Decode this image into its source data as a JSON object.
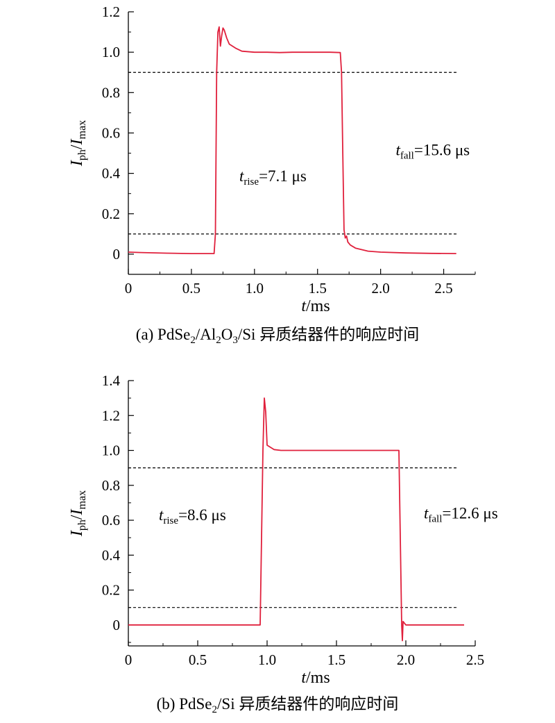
{
  "chart_data": [
    {
      "type": "line",
      "caption": {
        "prefix": "(a) PdSe",
        "sub1": "2",
        "mid1": "/Al",
        "sub2": "2",
        "mid2": "O",
        "sub3": "3",
        "suffix": "/Si 异质结器件的响应时间"
      },
      "xlabel": {
        "italic": "t",
        "rest": "/ms"
      },
      "ylabel": {
        "main1": "I",
        "sub1": "ph",
        "slash": "/",
        "main2": "I",
        "sub2": "max"
      },
      "xlim": [
        0,
        2.75
      ],
      "ylim": [
        -0.1,
        1.2
      ],
      "xticks": [
        0,
        0.5,
        1.0,
        1.5,
        2.0,
        2.5
      ],
      "xtick_labels": [
        "0",
        "0.5",
        "1.0",
        "1.5",
        "2.0",
        "2.5"
      ],
      "yticks": [
        0,
        0.2,
        0.4,
        0.6,
        0.8,
        1.0,
        1.2
      ],
      "ytick_labels": [
        "0",
        "0.2",
        "0.4",
        "0.6",
        "0.8",
        "1.0",
        "1.2"
      ],
      "reference_lines": [
        0.9,
        0.1
      ],
      "annotations": [
        {
          "main": "t",
          "sub": "rise",
          "text": "=7.1 μs",
          "x": 0.88,
          "y": 0.36
        },
        {
          "main": "t",
          "sub": "fall",
          "text": "=15.6 μs",
          "x": 2.12,
          "y": 0.49
        }
      ],
      "series": [
        {
          "color": "#e0203c",
          "x": [
            0,
            0.1,
            0.3,
            0.5,
            0.68,
            0.69,
            0.7,
            0.71,
            0.72,
            0.73,
            0.74,
            0.75,
            0.76,
            0.78,
            0.8,
            0.85,
            0.9,
            1.0,
            1.1,
            1.2,
            1.3,
            1.4,
            1.5,
            1.6,
            1.68,
            1.69,
            1.7,
            1.71,
            1.72,
            1.73,
            1.74,
            1.76,
            1.8,
            1.9,
            2.0,
            2.2,
            2.4,
            2.6
          ],
          "y": [
            0.01,
            0.008,
            0.005,
            0.003,
            0.003,
            0.1,
            0.9,
            1.1,
            1.125,
            1.03,
            1.08,
            1.12,
            1.11,
            1.07,
            1.04,
            1.02,
            1.005,
            1.0,
            1.0,
            0.998,
            1.0,
            1.0,
            1.0,
            1.0,
            0.998,
            0.9,
            0.5,
            0.12,
            0.08,
            0.09,
            0.06,
            0.045,
            0.03,
            0.015,
            0.01,
            0.006,
            0.004,
            0.003
          ]
        }
      ]
    },
    {
      "type": "line",
      "caption": {
        "prefix": "(b) PdSe",
        "sub1": "2",
        "suffix": "/Si 异质结器件的响应时间"
      },
      "xlabel": {
        "italic": "t",
        "rest": "/ms"
      },
      "ylabel": {
        "main1": "I",
        "sub1": "ph",
        "slash": "/",
        "main2": "I",
        "sub2": "max"
      },
      "xlim": [
        0,
        2.5
      ],
      "ylim": [
        -0.12,
        1.4
      ],
      "xticks": [
        0,
        0.5,
        1.0,
        1.5,
        2.0,
        2.5
      ],
      "xtick_labels": [
        "0",
        "0.5",
        "1.0",
        "1.5",
        "2.0",
        "2.5"
      ],
      "yticks": [
        0,
        0.2,
        0.4,
        0.6,
        0.8,
        1.0,
        1.2,
        1.4
      ],
      "ytick_labels": [
        "0",
        "0.2",
        "0.4",
        "0.6",
        "0.8",
        "1.0",
        "1.2",
        "1.4"
      ],
      "reference_lines": [
        0.9,
        0.1
      ],
      "annotations": [
        {
          "main": "t",
          "sub": "rise",
          "text": "=8.6 μs",
          "x": 0.22,
          "y": 0.6
        },
        {
          "main": "t",
          "sub": "fall",
          "text": "=12.6 μs",
          "x": 2.13,
          "y": 0.61
        }
      ],
      "series": [
        {
          "color": "#e0203c",
          "x": [
            0,
            0.2,
            0.5,
            0.8,
            0.95,
            0.96,
            0.97,
            0.98,
            0.99,
            1.0,
            1.02,
            1.05,
            1.1,
            1.2,
            1.4,
            1.6,
            1.8,
            1.95,
            1.96,
            1.97,
            1.975,
            1.98,
            1.99,
            2.0,
            2.05,
            2.2,
            2.42
          ],
          "y": [
            0.0,
            0.0,
            0.0,
            0.0,
            0.0,
            0.5,
            1.0,
            1.3,
            1.22,
            1.03,
            1.02,
            1.005,
            1.0,
            1.0,
            1.0,
            1.0,
            1.0,
            1.0,
            0.5,
            0.0,
            -0.09,
            0.02,
            0.01,
            0.0,
            0.0,
            0.0,
            0.0
          ]
        }
      ]
    }
  ]
}
